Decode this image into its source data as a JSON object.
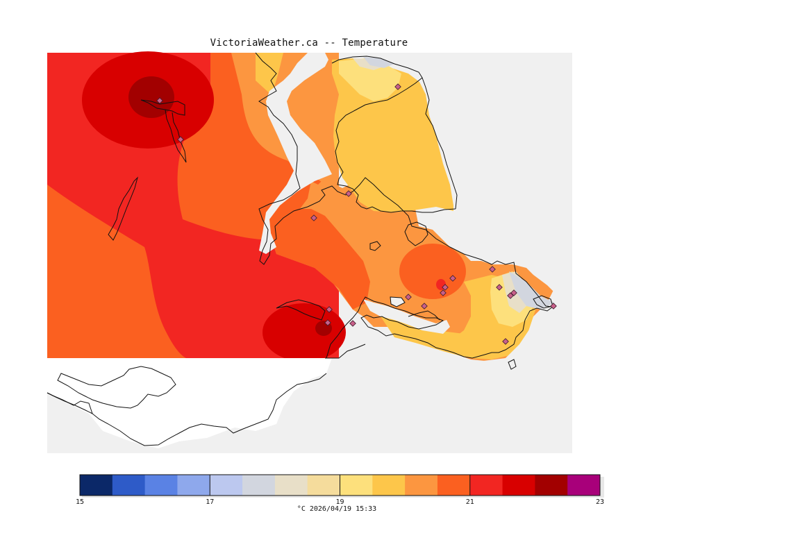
{
  "title": "VictoriaWeather.ca -- Temperature",
  "caption": "°C  2026/04/19 15:33",
  "colors": {
    "background": "#f0f0f0",
    "outside": "#ffffff",
    "coast": "#111111",
    "station": "#cc3333"
  },
  "legend": {
    "bins": [
      "#0b2868",
      "#2e5bc8",
      "#5a82e4",
      "#8ea8ec",
      "#bcc8ef",
      "#d2d6df",
      "#e8dfc8",
      "#f5dc9c",
      "#fde07c",
      "#fdc64a",
      "#fc9640",
      "#fb6020",
      "#f22622",
      "#d80000",
      "#a20000",
      "#a8007a"
    ],
    "tick_values": [
      15,
      17,
      19,
      21,
      23
    ],
    "tick_labels": [
      "15",
      "17",
      "19",
      "21",
      "23"
    ]
  },
  "stations_count_label": ""
}
